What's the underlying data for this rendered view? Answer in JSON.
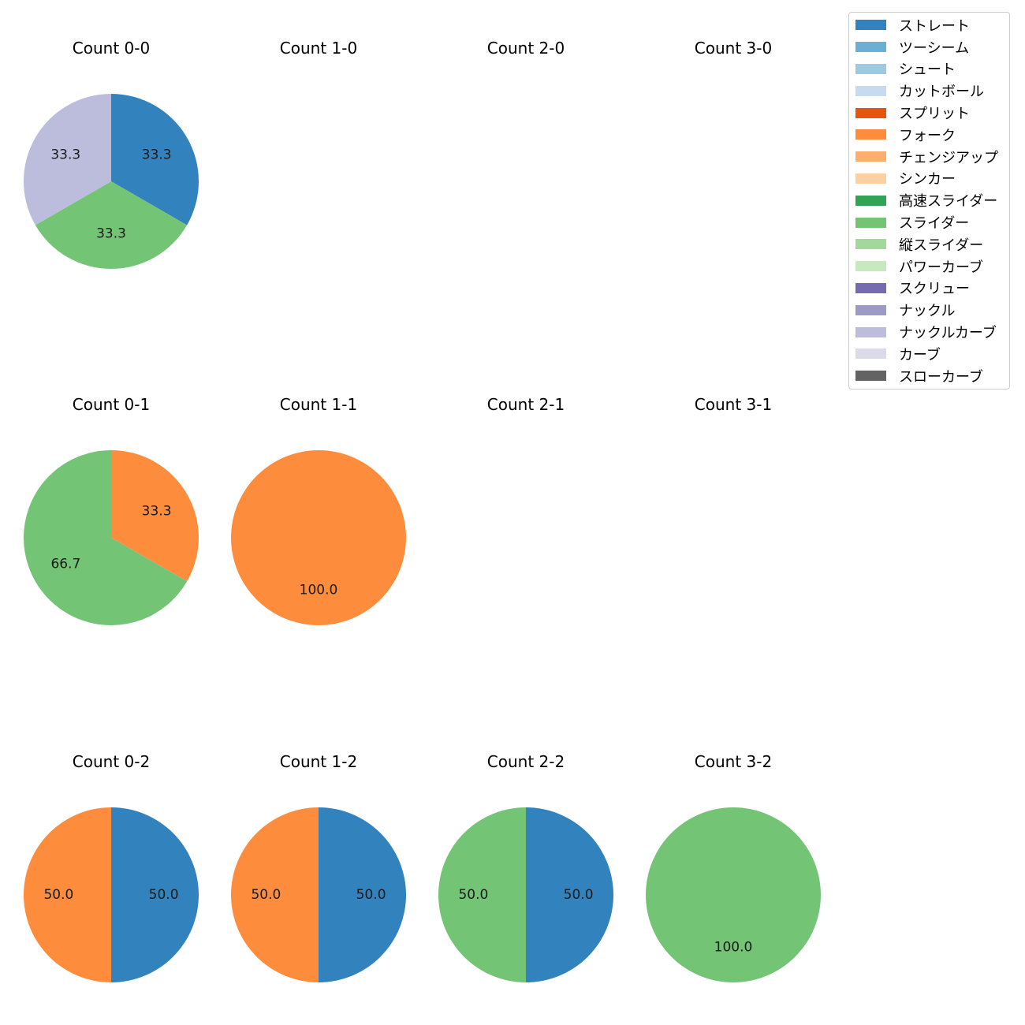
{
  "chart_data": {
    "type": "pie",
    "legend": {
      "position": "top-right",
      "entries": [
        {
          "label": "ストレート",
          "color": "#3182bd"
        },
        {
          "label": "ツーシーム",
          "color": "#6baed6"
        },
        {
          "label": "シュート",
          "color": "#9ecae1"
        },
        {
          "label": "カットボール",
          "color": "#c6dbef"
        },
        {
          "label": "スプリット",
          "color": "#e6550d"
        },
        {
          "label": "フォーク",
          "color": "#fd8d3c"
        },
        {
          "label": "チェンジアップ",
          "color": "#fdae6b"
        },
        {
          "label": "シンカー",
          "color": "#fdd0a2"
        },
        {
          "label": "高速スライダー",
          "color": "#31a354"
        },
        {
          "label": "スライダー",
          "color": "#74c476"
        },
        {
          "label": "縦スライダー",
          "color": "#a1d99b"
        },
        {
          "label": "パワーカーブ",
          "color": "#c7e9c0"
        },
        {
          "label": "スクリュー",
          "color": "#756bb1"
        },
        {
          "label": "ナックル",
          "color": "#9e9ac8"
        },
        {
          "label": "ナックルカーブ",
          "color": "#bcbddc"
        },
        {
          "label": "カーブ",
          "color": "#dadaeb"
        },
        {
          "label": "スローカーブ",
          "color": "#636363"
        }
      ]
    },
    "panels": [
      {
        "title": "Count 0-0",
        "slices": [
          {
            "pitch": "ストレート",
            "value": 33.3
          },
          {
            "pitch": "スライダー",
            "value": 33.3
          },
          {
            "pitch": "ナックルカーブ",
            "value": 33.3
          }
        ]
      },
      {
        "title": "Count 1-0",
        "slices": []
      },
      {
        "title": "Count 2-0",
        "slices": []
      },
      {
        "title": "Count 3-0",
        "slices": []
      },
      {
        "title": "Count 0-1",
        "slices": [
          {
            "pitch": "フォーク",
            "value": 33.3
          },
          {
            "pitch": "スライダー",
            "value": 66.7
          }
        ]
      },
      {
        "title": "Count 1-1",
        "slices": [
          {
            "pitch": "フォーク",
            "value": 100.0
          }
        ]
      },
      {
        "title": "Count 2-1",
        "slices": []
      },
      {
        "title": "Count 3-1",
        "slices": []
      },
      {
        "title": "Count 0-2",
        "slices": [
          {
            "pitch": "ストレート",
            "value": 50.0
          },
          {
            "pitch": "フォーク",
            "value": 50.0
          }
        ]
      },
      {
        "title": "Count 1-2",
        "slices": [
          {
            "pitch": "ストレート",
            "value": 50.0
          },
          {
            "pitch": "フォーク",
            "value": 50.0
          }
        ]
      },
      {
        "title": "Count 2-2",
        "slices": [
          {
            "pitch": "ストレート",
            "value": 50.0
          },
          {
            "pitch": "スライダー",
            "value": 50.0
          }
        ]
      },
      {
        "title": "Count 3-2",
        "slices": [
          {
            "pitch": "スライダー",
            "value": 100.0
          }
        ]
      }
    ]
  }
}
